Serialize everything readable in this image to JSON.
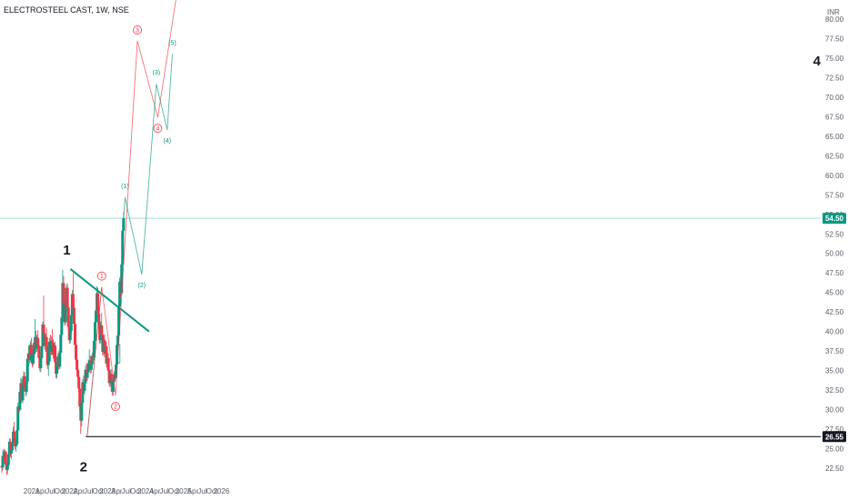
{
  "header": {
    "title": "ELECTROSTEEL CAST, 1W, NSE"
  },
  "chart_data": {
    "type": "candlestick",
    "currency_label": "INR",
    "y_ticks": [
      "80.00",
      "77.50",
      "75.00",
      "72.50",
      "70.00",
      "67.50",
      "65.00",
      "62.50",
      "60.00",
      "57.50",
      "55.00",
      "52.50",
      "50.00",
      "47.50",
      "45.00",
      "42.50",
      "40.00",
      "37.50",
      "35.00",
      "32.50",
      "30.00",
      "27.50",
      "25.00",
      "22.50"
    ],
    "ylim": [
      21,
      81.5
    ],
    "x_ticks": [
      "2021",
      "Apr",
      "Jul",
      "Oct",
      "2022",
      "Apr",
      "Jul",
      "Oct",
      "2023",
      "Apr",
      "Jul",
      "Oct",
      "2024",
      "Apr",
      "Jul",
      "Oct",
      "2025",
      "Apr",
      "Jul",
      "Oct",
      "2026"
    ],
    "current_price": {
      "label": "54.50",
      "value": 54.5,
      "color": "#089981"
    },
    "support_level": {
      "label": "26.55",
      "value": 26.55,
      "color": "#131722"
    },
    "trendline": {
      "from": [
        "2022-01-10",
        48.0
      ],
      "to": [
        "2024-02-05",
        40.0
      ],
      "color": "#089981"
    },
    "corner_label": "4",
    "primary_labels": [
      {
        "text": "1",
        "x": "2022-01-10",
        "y": 48.0
      },
      {
        "text": "2",
        "x": "2022-06-20",
        "y": 26.55
      }
    ],
    "red_wave": {
      "color": "#f23645",
      "points": [
        [
          "2022-06-20",
          26.55
        ],
        [
          "2022-11-07",
          45.7
        ],
        [
          "2023-03-20",
          31.8
        ],
        [
          "2023-10-16",
          77.2
        ],
        [
          "2024-04-29",
          67.4
        ],
        [
          "2024-10-21",
          82.5
        ]
      ],
      "labels": [
        {
          "text": "1",
          "x": "2022-11-07",
          "y": 45.7
        },
        {
          "text": "2",
          "x": "2023-03-20",
          "y": 31.8
        },
        {
          "text": "3",
          "x": "2023-10-16",
          "y": 77.2
        },
        {
          "text": "4",
          "x": "2024-04-29",
          "y": 67.4
        }
      ]
    },
    "teal_wave": {
      "color": "#089981",
      "points": [
        [
          "2023-06-19",
          57.2
        ],
        [
          "2023-11-27",
          47.3
        ],
        [
          "2024-04-15",
          71.7
        ],
        [
          "2024-07-29",
          65.8
        ],
        [
          "2024-09-16",
          75.5
        ]
      ],
      "labels": [
        {
          "text": "(1)",
          "x": "2023-06-19",
          "y": 57.2
        },
        {
          "text": "(2)",
          "x": "2023-11-27",
          "y": 47.3
        },
        {
          "text": "(3)",
          "x": "2024-04-15",
          "y": 71.7
        },
        {
          "text": "(4)",
          "x": "2024-07-29",
          "y": 65.8
        },
        {
          "text": "(5)",
          "x": "2024-09-16",
          "y": 75.5
        }
      ]
    },
    "teal_cross_line": {
      "from": [
        "2022-06-20",
        26.55
      ],
      "to": [
        "2022-11-07",
        45.7
      ]
    },
    "box": {
      "from": [
        "2023-04-10",
        36.0
      ],
      "to": [
        "2023-05-01",
        38.3
      ]
    },
    "candles": [
      [
        22.8,
        23.6,
        21.9,
        22.6
      ],
      [
        22.6,
        24.8,
        22.2,
        24.1
      ],
      [
        24.1,
        25.0,
        23.3,
        23.8
      ],
      [
        23.8,
        24.9,
        23.0,
        24.6
      ],
      [
        24.6,
        24.8,
        22.8,
        23.1
      ],
      [
        23.1,
        23.6,
        21.6,
        22.3
      ],
      [
        22.3,
        23.2,
        21.8,
        22.9
      ],
      [
        22.9,
        24.7,
        22.5,
        24.3
      ],
      [
        24.3,
        26.3,
        24.0,
        25.9
      ],
      [
        25.9,
        26.3,
        23.9,
        24.4
      ],
      [
        24.4,
        25.1,
        23.7,
        24.8
      ],
      [
        24.8,
        26.2,
        24.4,
        25.7
      ],
      [
        25.7,
        27.8,
        25.4,
        27.2
      ],
      [
        27.2,
        28.4,
        25.9,
        26.3
      ],
      [
        26.3,
        26.8,
        24.9,
        25.3
      ],
      [
        25.3,
        26.0,
        24.6,
        25.6
      ],
      [
        25.6,
        27.9,
        25.3,
        27.4
      ],
      [
        27.4,
        30.9,
        27.1,
        30.4
      ],
      [
        30.4,
        31.9,
        29.5,
        30.0
      ],
      [
        30.0,
        32.8,
        29.8,
        32.3
      ],
      [
        32.3,
        34.1,
        31.4,
        33.4
      ],
      [
        33.4,
        33.9,
        30.9,
        31.2
      ],
      [
        31.2,
        33.4,
        30.8,
        32.9
      ],
      [
        32.9,
        34.9,
        32.4,
        34.3
      ],
      [
        34.3,
        34.8,
        32.6,
        33.0
      ],
      [
        33.0,
        33.5,
        31.7,
        32.3
      ],
      [
        32.3,
        34.0,
        31.9,
        33.6
      ],
      [
        33.6,
        36.9,
        33.3,
        36.5
      ],
      [
        36.5,
        38.2,
        35.6,
        37.2
      ],
      [
        37.2,
        38.0,
        35.9,
        36.4
      ],
      [
        36.4,
        38.8,
        36.1,
        38.3
      ],
      [
        38.3,
        39.2,
        36.7,
        37.1
      ],
      [
        37.1,
        37.7,
        35.4,
        35.9
      ],
      [
        35.9,
        37.5,
        35.6,
        37.1
      ],
      [
        37.1,
        39.0,
        36.6,
        38.6
      ],
      [
        38.6,
        41.6,
        38.1,
        39.3
      ],
      [
        39.3,
        40.1,
        37.3,
        37.8
      ],
      [
        37.8,
        39.6,
        37.4,
        39.2
      ],
      [
        39.2,
        40.2,
        37.7,
        38.2
      ],
      [
        38.2,
        38.7,
        36.1,
        36.6
      ],
      [
        36.6,
        37.3,
        34.9,
        35.3
      ],
      [
        35.3,
        37.1,
        34.8,
        36.6
      ],
      [
        36.6,
        38.5,
        36.1,
        38.1
      ],
      [
        38.1,
        41.3,
        37.9,
        40.9
      ],
      [
        40.9,
        44.6,
        39.2,
        39.8
      ],
      [
        39.8,
        40.4,
        37.7,
        38.3
      ],
      [
        38.3,
        39.7,
        37.4,
        39.3
      ],
      [
        39.3,
        40.5,
        37.6,
        38.1
      ],
      [
        38.1,
        38.6,
        35.2,
        35.7
      ],
      [
        35.7,
        36.6,
        34.3,
        36.2
      ],
      [
        36.2,
        39.2,
        35.9,
        38.7
      ],
      [
        38.7,
        39.6,
        37.1,
        37.4
      ],
      [
        37.4,
        39.4,
        37.0,
        38.8
      ],
      [
        38.8,
        40.3,
        38.0,
        38.4
      ],
      [
        38.4,
        39.0,
        36.5,
        37.0
      ],
      [
        37.0,
        38.6,
        36.8,
        38.2
      ],
      [
        38.2,
        38.7,
        35.8,
        36.1
      ],
      [
        36.1,
        36.7,
        34.0,
        34.6
      ],
      [
        34.6,
        36.1,
        34.0,
        35.6
      ],
      [
        35.6,
        37.2,
        35.2,
        36.8
      ],
      [
        36.8,
        37.5,
        35.1,
        35.5
      ],
      [
        35.5,
        37.9,
        35.2,
        37.3
      ],
      [
        37.3,
        40.2,
        37.0,
        39.6
      ],
      [
        39.6,
        42.4,
        39.2,
        41.8
      ],
      [
        41.8,
        47.9,
        41.1,
        46.2
      ],
      [
        46.2,
        47.1,
        42.9,
        43.5
      ],
      [
        43.5,
        44.4,
        40.7,
        41.2
      ],
      [
        41.2,
        43.9,
        40.9,
        43.4
      ],
      [
        43.4,
        46.0,
        42.8,
        45.6
      ],
      [
        45.6,
        46.2,
        42.6,
        43.1
      ],
      [
        43.1,
        43.7,
        40.1,
        40.6
      ],
      [
        40.6,
        42.2,
        38.4,
        38.9
      ],
      [
        38.9,
        40.6,
        38.5,
        40.1
      ],
      [
        40.1,
        42.6,
        39.7,
        42.1
      ],
      [
        42.1,
        45.3,
        41.8,
        44.8
      ],
      [
        44.8,
        47.5,
        42.5,
        43.0
      ],
      [
        43.0,
        43.6,
        40.4,
        41.0
      ],
      [
        41.0,
        41.9,
        37.8,
        38.3
      ],
      [
        38.3,
        39.2,
        35.8,
        36.4
      ],
      [
        36.4,
        37.1,
        34.7,
        35.1
      ],
      [
        35.1,
        36.1,
        33.8,
        34.2
      ],
      [
        34.2,
        34.8,
        32.2,
        32.7
      ],
      [
        32.7,
        33.2,
        29.8,
        30.4
      ],
      [
        30.4,
        31.0,
        26.9,
        28.6
      ],
      [
        28.6,
        31.3,
        27.8,
        30.9
      ],
      [
        30.9,
        33.9,
        30.5,
        33.5
      ],
      [
        33.5,
        34.4,
        32.0,
        32.4
      ],
      [
        32.4,
        33.8,
        32.0,
        33.4
      ],
      [
        33.4,
        35.6,
        33.0,
        35.1
      ],
      [
        35.1,
        36.0,
        33.6,
        34.1
      ],
      [
        34.1,
        35.2,
        33.7,
        34.8
      ],
      [
        34.8,
        36.4,
        34.3,
        35.9
      ],
      [
        35.9,
        37.7,
        35.5,
        36.3
      ],
      [
        36.3,
        36.9,
        34.6,
        35.1
      ],
      [
        35.1,
        36.1,
        34.7,
        35.8
      ],
      [
        35.8,
        37.3,
        35.4,
        36.9
      ],
      [
        36.9,
        38.4,
        36.1,
        36.7
      ],
      [
        36.7,
        39.2,
        36.3,
        38.8
      ],
      [
        38.8,
        41.6,
        38.5,
        41.2
      ],
      [
        41.2,
        43.4,
        40.2,
        42.7
      ],
      [
        42.7,
        45.8,
        42.3,
        44.9
      ],
      [
        44.9,
        45.6,
        41.6,
        42.3
      ],
      [
        42.3,
        42.9,
        40.4,
        40.9
      ],
      [
        40.9,
        41.6,
        38.4,
        38.9
      ],
      [
        38.9,
        41.3,
        38.5,
        40.8
      ],
      [
        40.8,
        42.4,
        39.1,
        39.6
      ],
      [
        39.6,
        40.3,
        36.9,
        37.4
      ],
      [
        37.4,
        39.3,
        37.0,
        38.9
      ],
      [
        38.9,
        39.6,
        36.7,
        37.2
      ],
      [
        37.2,
        38.6,
        36.8,
        38.1
      ],
      [
        38.1,
        38.7,
        35.4,
        35.9
      ],
      [
        35.9,
        37.1,
        35.3,
        36.6
      ],
      [
        36.6,
        37.2,
        34.5,
        35.0
      ],
      [
        35.0,
        35.6,
        32.9,
        33.4
      ],
      [
        33.4,
        35.1,
        33.0,
        34.6
      ],
      [
        34.6,
        35.2,
        33.3,
        33.8
      ],
      [
        33.8,
        34.3,
        31.8,
        32.3
      ],
      [
        32.3,
        34.1,
        31.8,
        33.6
      ],
      [
        33.6,
        34.9,
        33.2,
        34.5
      ],
      [
        34.5,
        35.1,
        33.6,
        34.1
      ],
      [
        34.1,
        36.3,
        33.9,
        35.8
      ],
      [
        35.8,
        38.9,
        35.5,
        38.3
      ],
      [
        38.3,
        39.9,
        37.2,
        39.5
      ],
      [
        39.5,
        43.8,
        39.2,
        43.2
      ],
      [
        43.2,
        46.9,
        42.9,
        46.4
      ],
      [
        46.4,
        47.3,
        44.4,
        44.9
      ],
      [
        44.9,
        49.1,
        44.6,
        48.6
      ],
      [
        48.6,
        53.6,
        48.3,
        52.9
      ],
      [
        52.9,
        55.3,
        52.6,
        54.5
      ]
    ]
  }
}
